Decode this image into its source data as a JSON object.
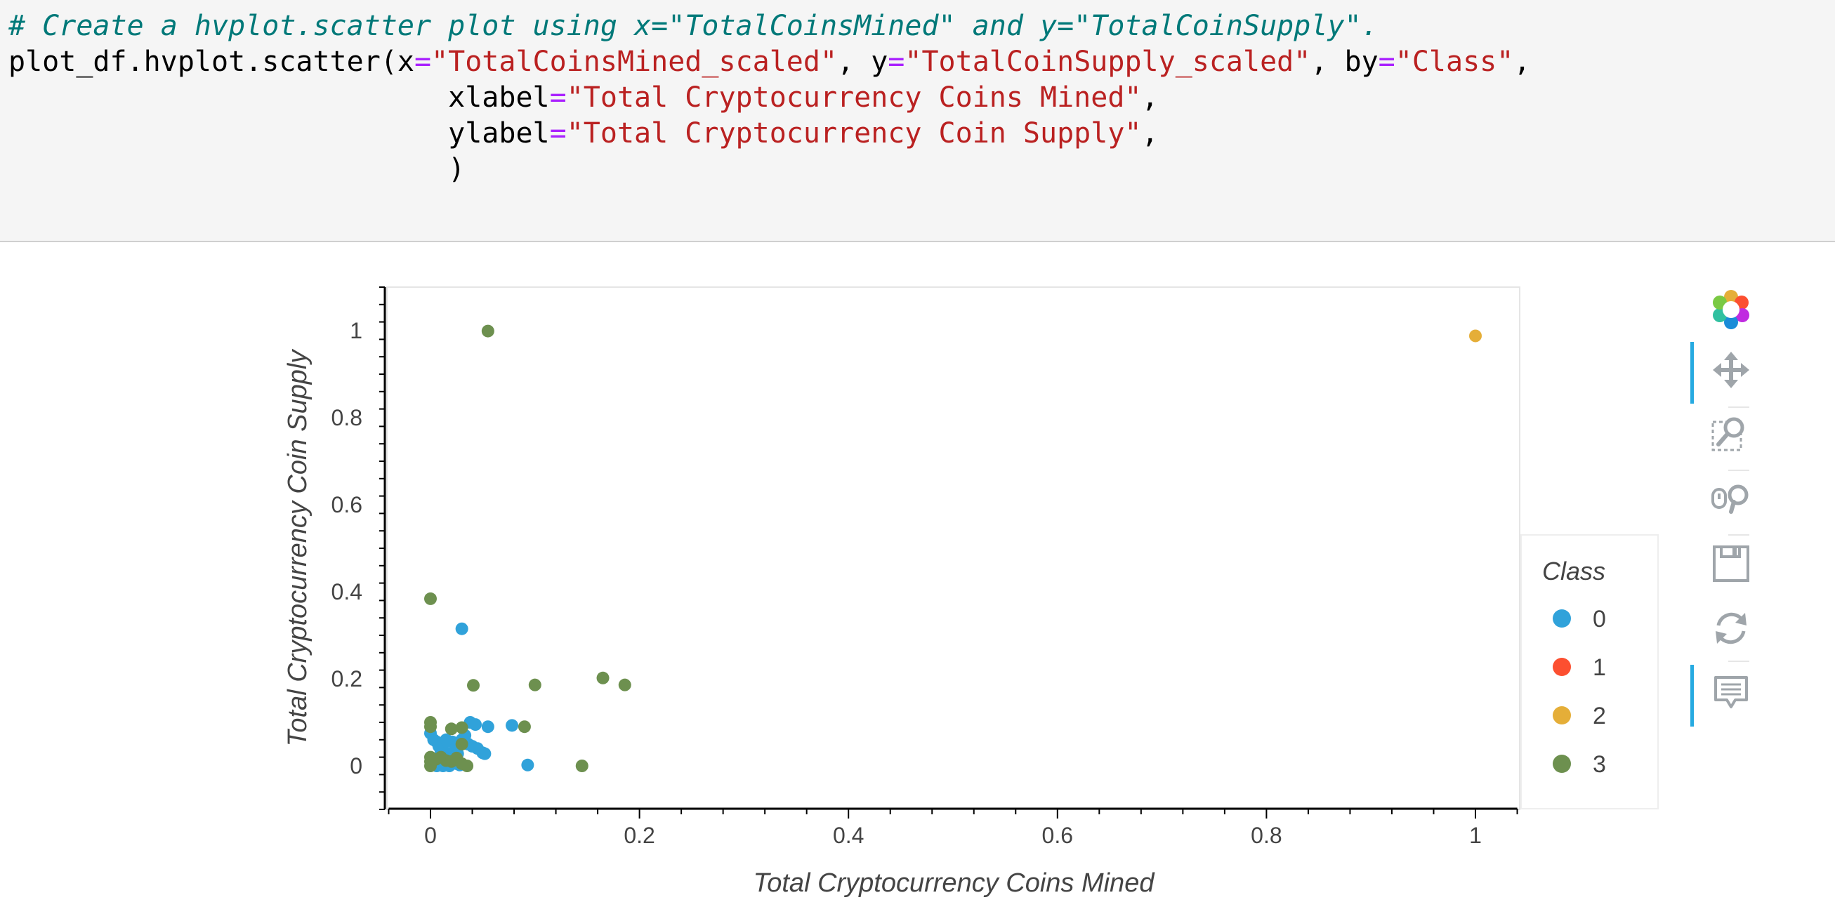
{
  "code_cell": {
    "lines": [
      [
        {
          "t": "comment",
          "v": "# Create a hvplot.scatter plot using x=\"TotalCoinsMined\" and y=\"TotalCoinSupply\"."
        }
      ],
      [
        {
          "t": "text",
          "v": "plot_df.hvplot.scatter(x"
        },
        {
          "t": "op",
          "v": "="
        },
        {
          "t": "str",
          "v": "\"TotalCoinsMined_scaled\""
        },
        {
          "t": "text",
          "v": ", y"
        },
        {
          "t": "op",
          "v": "="
        },
        {
          "t": "str",
          "v": "\"TotalCoinSupply_scaled\""
        },
        {
          "t": "text",
          "v": ", by"
        },
        {
          "t": "op",
          "v": "="
        },
        {
          "t": "str",
          "v": "\"Class\""
        },
        {
          "t": "text",
          "v": ","
        }
      ],
      [
        {
          "t": "text",
          "v": "                          xlabel"
        },
        {
          "t": "op",
          "v": "="
        },
        {
          "t": "str",
          "v": "\"Total Cryptocurrency Coins Mined\""
        },
        {
          "t": "text",
          "v": ","
        }
      ],
      [
        {
          "t": "text",
          "v": "                          ylabel"
        },
        {
          "t": "op",
          "v": "="
        },
        {
          "t": "str",
          "v": "\"Total Cryptocurrency Coin Supply\""
        },
        {
          "t": "text",
          "v": ","
        }
      ],
      [
        {
          "t": "text",
          "v": "                          )"
        }
      ]
    ],
    "colors": {
      "comment": "#007979",
      "op": "#aa22ff",
      "str": "#ba2121",
      "text": "#000000"
    }
  },
  "toolbar": {
    "tools": [
      {
        "name": "bokeh-logo-icon",
        "active": false
      },
      {
        "name": "pan-icon",
        "active": true
      },
      {
        "name": "box-zoom-icon",
        "active": false
      },
      {
        "name": "wheel-zoom-icon",
        "active": false
      },
      {
        "name": "save-icon",
        "active": false
      },
      {
        "name": "reset-icon",
        "active": false
      },
      {
        "name": "hover-icon",
        "active": true
      }
    ],
    "accent": "#26aae1"
  },
  "chart_data": {
    "type": "scatter",
    "xlabel": "Total Cryptocurrency Coins Mined",
    "ylabel": "Total Cryptocurrency Coin Supply",
    "xlim": [
      -0.04,
      1.04
    ],
    "ylim": [
      -0.1,
      1.1
    ],
    "xticks": [
      0,
      0.2,
      0.4,
      0.6,
      0.8,
      1
    ],
    "yticks": [
      0,
      0.2,
      0.4,
      0.6,
      0.8,
      1
    ],
    "xtick_labels": [
      "0",
      "0.2",
      "0.4",
      "0.6",
      "0.8",
      "1"
    ],
    "ytick_labels": [
      "0",
      "0.2",
      "0.4",
      "0.6",
      "0.8",
      "1"
    ],
    "grid": false,
    "legend": {
      "title": "Class",
      "placement": "right"
    },
    "series": [
      {
        "name": "0",
        "color": "#30a2da",
        "points": [
          [
            0.0,
            0.075
          ],
          [
            0.003,
            0.06
          ],
          [
            0.006,
            0.055
          ],
          [
            0.008,
            0.045
          ],
          [
            0.01,
            0.035
          ],
          [
            0.012,
            0.05
          ],
          [
            0.015,
            0.03
          ],
          [
            0.018,
            0.022
          ],
          [
            0.02,
            0.015
          ],
          [
            0.022,
            0.01
          ],
          [
            0.025,
            0.005
          ],
          [
            0.028,
            0.002
          ],
          [
            0.006,
            0.0
          ],
          [
            0.012,
            0.0
          ],
          [
            0.018,
            0.0
          ],
          [
            0.021,
            0.055
          ],
          [
            0.024,
            0.04
          ],
          [
            0.03,
            0.06
          ],
          [
            0.033,
            0.07
          ],
          [
            0.036,
            0.05
          ],
          [
            0.04,
            0.045
          ],
          [
            0.045,
            0.04
          ],
          [
            0.05,
            0.03
          ],
          [
            0.052,
            0.028
          ],
          [
            0.038,
            0.1
          ],
          [
            0.043,
            0.095
          ],
          [
            0.055,
            0.09
          ],
          [
            0.078,
            0.093
          ],
          [
            0.093,
            0.002
          ],
          [
            0.03,
            0.315
          ],
          [
            0.01,
            0.015
          ],
          [
            0.015,
            0.06
          ],
          [
            0.026,
            0.028
          ]
        ]
      },
      {
        "name": "1",
        "color": "#fc4f30",
        "points": []
      },
      {
        "name": "2",
        "color": "#e5ae38",
        "points": [
          [
            1.0,
            0.988
          ]
        ]
      },
      {
        "name": "3",
        "color": "#6d904f",
        "points": [
          [
            0.055,
            0.999
          ],
          [
            0.0,
            0.384
          ],
          [
            0.041,
            0.185
          ],
          [
            0.1,
            0.186
          ],
          [
            0.165,
            0.202
          ],
          [
            0.186,
            0.186
          ],
          [
            0.0,
            0.1
          ],
          [
            0.0,
            0.09
          ],
          [
            0.02,
            0.085
          ],
          [
            0.03,
            0.088
          ],
          [
            0.09,
            0.09
          ],
          [
            0.03,
            0.05
          ],
          [
            0.0,
            0.02
          ],
          [
            0.0,
            0.01
          ],
          [
            0.005,
            0.015
          ],
          [
            0.01,
            0.02
          ],
          [
            0.015,
            0.012
          ],
          [
            0.02,
            0.01
          ],
          [
            0.025,
            0.018
          ],
          [
            0.03,
            0.005
          ],
          [
            0.035,
            0.0
          ],
          [
            0.0,
            0.0
          ],
          [
            0.145,
            0.0
          ]
        ]
      }
    ]
  }
}
